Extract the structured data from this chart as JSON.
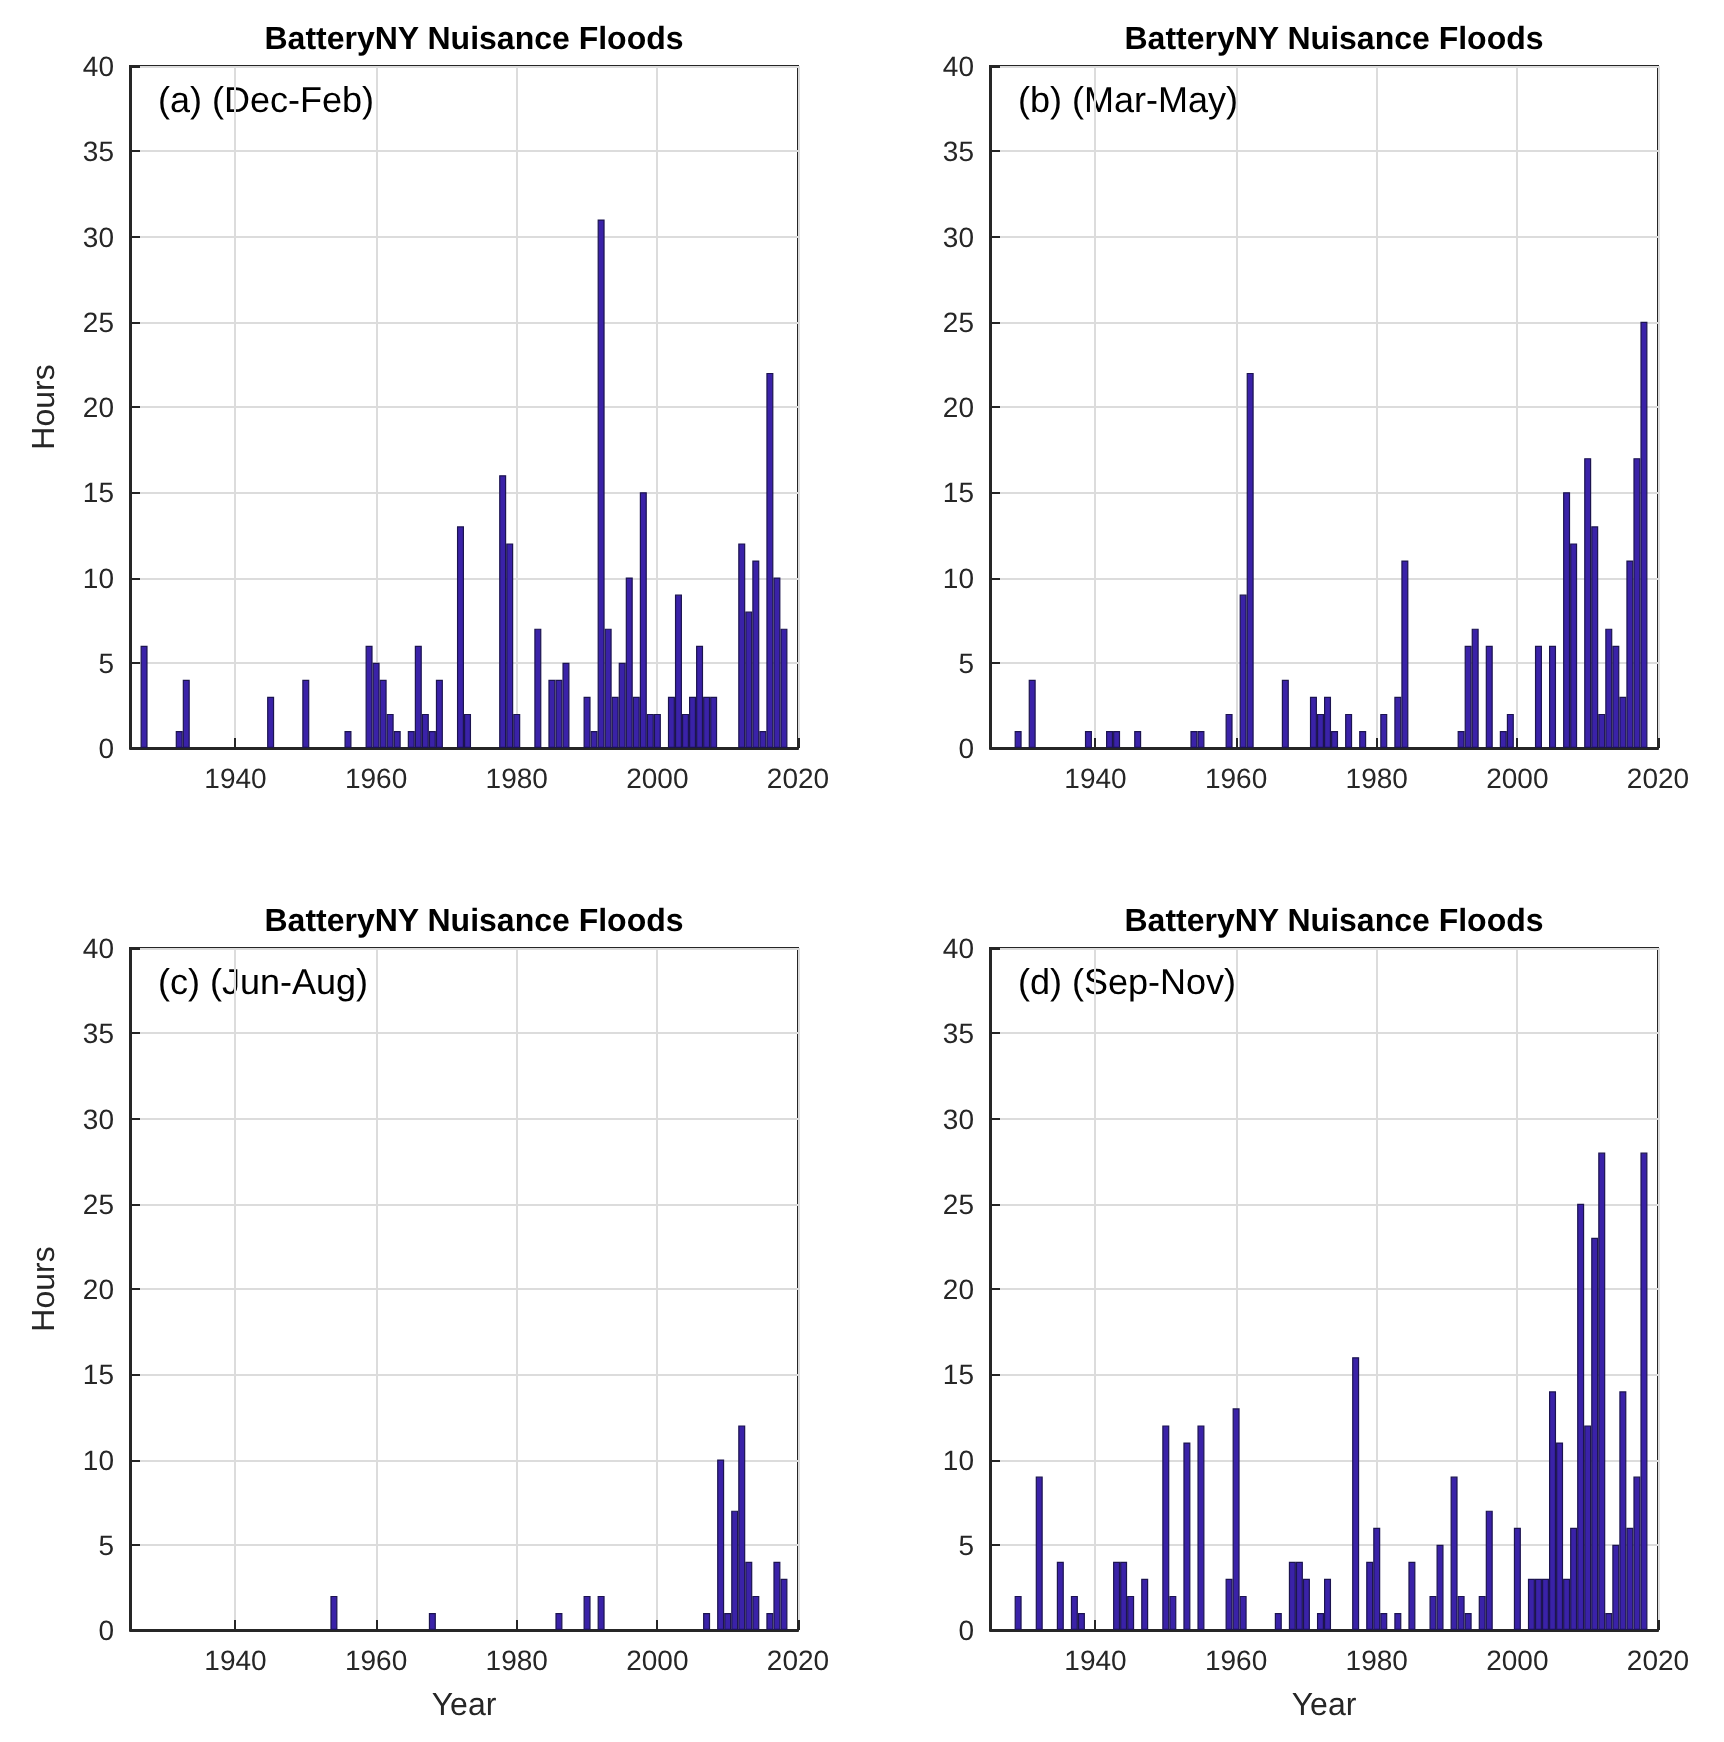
{
  "chart_data": [
    {
      "type": "bar",
      "title": "BatteryNY Nuisance Floods",
      "ylabel": "Hours",
      "annotations": [
        "(a) (Dec-Feb)"
      ],
      "color": "#3a22a8",
      "xlim": [
        1925,
        2020
      ],
      "xticks": [
        1940,
        1960,
        1980,
        2000,
        2020
      ],
      "ylim": [
        0,
        40
      ],
      "yticks": [
        0,
        5,
        10,
        15,
        20,
        25,
        30,
        35,
        40
      ],
      "grid": true,
      "x": [
        1927,
        1932,
        1933,
        1945,
        1950,
        1956,
        1959,
        1960,
        1961,
        1962,
        1963,
        1965,
        1966,
        1967,
        1968,
        1969,
        1972,
        1973,
        1978,
        1979,
        1980,
        1983,
        1985,
        1986,
        1987,
        1990,
        1991,
        1992,
        1993,
        1994,
        1995,
        1996,
        1997,
        1998,
        1999,
        2000,
        2002,
        2003,
        2004,
        2005,
        2006,
        2007,
        2008,
        2012,
        2013,
        2014,
        2015,
        2016,
        2017,
        2018
      ],
      "values": [
        6,
        1,
        4,
        3,
        4,
        1,
        6,
        5,
        4,
        2,
        1,
        1,
        6,
        2,
        1,
        4,
        13,
        2,
        16,
        12,
        2,
        7,
        4,
        4,
        5,
        3,
        1,
        31,
        7,
        3,
        5,
        10,
        3,
        15,
        2,
        2,
        3,
        9,
        2,
        3,
        6,
        3,
        3,
        12,
        8,
        11,
        1,
        22,
        10,
        7
      ]
    },
    {
      "type": "bar",
      "title": "BatteryNY Nuisance Floods",
      "annotations": [
        "(b) (Mar-May)"
      ],
      "color": "#3a22a8",
      "xlim": [
        1925,
        2020
      ],
      "xticks": [
        1940,
        1960,
        1980,
        2000,
        2020
      ],
      "ylim": [
        0,
        40
      ],
      "yticks": [
        0,
        5,
        10,
        15,
        20,
        25,
        30,
        35,
        40
      ],
      "grid": true,
      "x": [
        1929,
        1931,
        1939,
        1942,
        1943,
        1946,
        1954,
        1955,
        1959,
        1961,
        1962,
        1967,
        1971,
        1972,
        1973,
        1974,
        1976,
        1978,
        1981,
        1983,
        1984,
        1992,
        1993,
        1994,
        1996,
        1998,
        1999,
        2003,
        2005,
        2007,
        2008,
        2010,
        2011,
        2012,
        2013,
        2014,
        2015,
        2016,
        2017,
        2018
      ],
      "values": [
        1,
        4,
        1,
        1,
        1,
        1,
        1,
        1,
        2,
        9,
        22,
        4,
        3,
        2,
        3,
        1,
        2,
        1,
        2,
        3,
        11,
        1,
        6,
        7,
        6,
        1,
        2,
        6,
        6,
        15,
        12,
        17,
        13,
        2,
        7,
        6,
        3,
        11,
        17,
        25
      ]
    },
    {
      "type": "bar",
      "title": "BatteryNY Nuisance Floods",
      "xlabel": "Year",
      "ylabel": "Hours",
      "annotations": [
        "(c) (Jun-Aug)"
      ],
      "color": "#3a22a8",
      "xlim": [
        1925,
        2020
      ],
      "xticks": [
        1940,
        1960,
        1980,
        2000,
        2020
      ],
      "ylim": [
        0,
        40
      ],
      "yticks": [
        0,
        5,
        10,
        15,
        20,
        25,
        30,
        35,
        40
      ],
      "grid": true,
      "x": [
        1954,
        1968,
        1986,
        1990,
        1992,
        2007,
        2009,
        2010,
        2011,
        2012,
        2013,
        2014,
        2016,
        2017,
        2018
      ],
      "values": [
        2,
        1,
        1,
        2,
        2,
        1,
        10,
        1,
        7,
        12,
        4,
        2,
        1,
        4,
        3
      ]
    },
    {
      "type": "bar",
      "title": "BatteryNY Nuisance Floods",
      "xlabel": "Year",
      "annotations": [
        "(d) (Sep-Nov)"
      ],
      "color": "#3a22a8",
      "xlim": [
        1925,
        2020
      ],
      "xticks": [
        1940,
        1960,
        1980,
        2000,
        2020
      ],
      "ylim": [
        0,
        40
      ],
      "yticks": [
        0,
        5,
        10,
        15,
        20,
        25,
        30,
        35,
        40
      ],
      "grid": true,
      "x": [
        1929,
        1932,
        1935,
        1937,
        1938,
        1943,
        1944,
        1945,
        1947,
        1950,
        1951,
        1953,
        1955,
        1959,
        1960,
        1961,
        1966,
        1968,
        1969,
        1970,
        1972,
        1973,
        1977,
        1979,
        1980,
        1981,
        1983,
        1985,
        1988,
        1989,
        1991,
        1992,
        1993,
        1995,
        1996,
        2000,
        2002,
        2003,
        2004,
        2005,
        2006,
        2007,
        2008,
        2009,
        2010,
        2011,
        2012,
        2013,
        2014,
        2015,
        2016,
        2017,
        2018
      ],
      "values": [
        2,
        9,
        4,
        2,
        1,
        4,
        4,
        2,
        3,
        12,
        2,
        11,
        12,
        3,
        13,
        2,
        1,
        4,
        4,
        3,
        1,
        3,
        16,
        4,
        6,
        1,
        1,
        4,
        2,
        5,
        9,
        2,
        1,
        2,
        7,
        6,
        3,
        3,
        3,
        14,
        11,
        3,
        6,
        25,
        12,
        23,
        28,
        1,
        5,
        14,
        6,
        9,
        28
      ]
    }
  ]
}
